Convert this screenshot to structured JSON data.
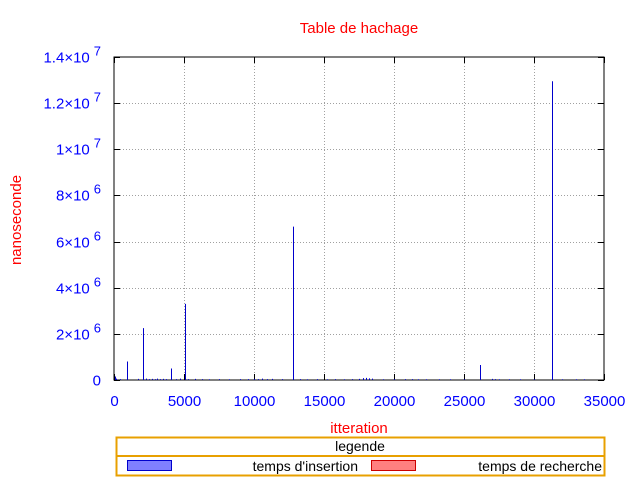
{
  "chart_data": {
    "type": "bar",
    "title": "Table de hachage",
    "xlabel": "itteration",
    "ylabel": "nanoseconde",
    "xlim": [
      0,
      35000
    ],
    "ylim": [
      0,
      14000000
    ],
    "grid": true,
    "legend_position": "bottom",
    "legend_title": "legende",
    "x_ticks": [
      {
        "value": 0,
        "label": "0"
      },
      {
        "value": 5000,
        "label": "5000"
      },
      {
        "value": 10000,
        "label": "10000"
      },
      {
        "value": 15000,
        "label": "15000"
      },
      {
        "value": 20000,
        "label": "20000"
      },
      {
        "value": 25000,
        "label": "25000"
      },
      {
        "value": 30000,
        "label": "30000"
      },
      {
        "value": 35000,
        "label": "35000"
      }
    ],
    "y_ticks": [
      {
        "value": 0,
        "mantissa": "0",
        "exponent": ""
      },
      {
        "value": 2000000,
        "mantissa": "2×10",
        "exponent": "6"
      },
      {
        "value": 4000000,
        "mantissa": "4×10",
        "exponent": "6"
      },
      {
        "value": 6000000,
        "mantissa": "6×10",
        "exponent": "6"
      },
      {
        "value": 8000000,
        "mantissa": "8×10",
        "exponent": "6"
      },
      {
        "value": 10000000,
        "mantissa": "1×10",
        "exponent": "7"
      },
      {
        "value": 12000000,
        "mantissa": "1.2×10",
        "exponent": "7"
      },
      {
        "value": 14000000,
        "mantissa": "1.4×10",
        "exponent": "7"
      }
    ],
    "series": [
      {
        "name": "temps d'insertion",
        "color": "#0000cc",
        "fill": "#8080ff",
        "points": [
          [
            50,
            150000
          ],
          [
            150,
            60000
          ],
          [
            400,
            40000
          ],
          [
            950,
            800000
          ],
          [
            1700,
            50000
          ],
          [
            2100,
            2250000
          ],
          [
            2300,
            60000
          ],
          [
            2500,
            40000
          ],
          [
            2700,
            50000
          ],
          [
            2900,
            40000
          ],
          [
            3100,
            60000
          ],
          [
            3300,
            40000
          ],
          [
            3500,
            50000
          ],
          [
            3700,
            40000
          ],
          [
            4100,
            500000
          ],
          [
            4400,
            40000
          ],
          [
            4700,
            60000
          ],
          [
            5050,
            3300000
          ],
          [
            5300,
            40000
          ],
          [
            5800,
            50000
          ],
          [
            6300,
            40000
          ],
          [
            6800,
            30000
          ],
          [
            7500,
            40000
          ],
          [
            8200,
            30000
          ],
          [
            9000,
            40000
          ],
          [
            9600,
            40000
          ],
          [
            10000,
            50000
          ],
          [
            10300,
            40000
          ],
          [
            10600,
            60000
          ],
          [
            10900,
            40000
          ],
          [
            11300,
            50000
          ],
          [
            12000,
            40000
          ],
          [
            12750,
            6650000
          ],
          [
            13300,
            40000
          ],
          [
            13800,
            30000
          ],
          [
            14500,
            40000
          ],
          [
            15200,
            30000
          ],
          [
            15800,
            40000
          ],
          [
            16400,
            30000
          ],
          [
            17000,
            40000
          ],
          [
            17500,
            50000
          ],
          [
            17800,
            80000
          ],
          [
            18000,
            90000
          ],
          [
            18200,
            70000
          ],
          [
            18400,
            60000
          ],
          [
            19200,
            30000
          ],
          [
            20000,
            40000
          ],
          [
            20800,
            40000
          ],
          [
            21300,
            40000
          ],
          [
            21700,
            30000
          ],
          [
            22300,
            30000
          ],
          [
            23200,
            30000
          ],
          [
            24000,
            30000
          ],
          [
            25000,
            30000
          ],
          [
            26150,
            650000
          ],
          [
            27000,
            50000
          ],
          [
            27200,
            40000
          ],
          [
            27500,
            30000
          ],
          [
            28200,
            30000
          ],
          [
            29000,
            30000
          ],
          [
            30000,
            30000
          ],
          [
            31250,
            12950000
          ],
          [
            32000,
            30000
          ],
          [
            33000,
            30000
          ],
          [
            33600,
            30000
          ]
        ]
      },
      {
        "name": "temps de recherche",
        "color": "#cc0000",
        "fill": "#ff8080",
        "points": []
      }
    ]
  }
}
